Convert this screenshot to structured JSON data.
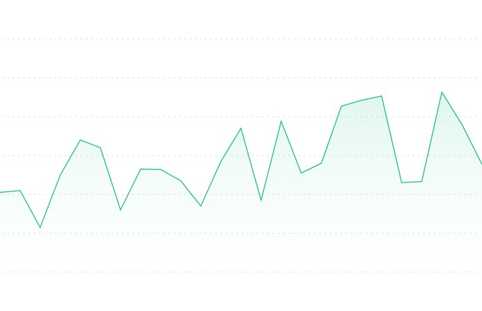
{
  "colors": {
    "background": "#ffffff",
    "grid": "#d6d6d6",
    "line": "#1bbf8a",
    "area_top": "#1bbf8a",
    "area_bottom": "#ffffff"
  },
  "chart_data": {
    "type": "area",
    "x": [
      0,
      1,
      2,
      3,
      4,
      5,
      6,
      7,
      8,
      9,
      10,
      11,
      12,
      13,
      14,
      15,
      16,
      17,
      18,
      19,
      20,
      21,
      22,
      23,
      24
    ],
    "series": [
      {
        "values": [
          30.5,
          31.0,
          21.5,
          35.0,
          44.0,
          42.0,
          26.0,
          36.5,
          36.4,
          33.5,
          27.0,
          38.5,
          47.0,
          28.5,
          48.8,
          35.5,
          38.0,
          52.7,
          54.2,
          55.3,
          33.0,
          33.3,
          56.3,
          48.0,
          37.7
        ]
      }
    ],
    "ylim": [
      0,
      80
    ],
    "gridlines": [
      10,
      20,
      30,
      40,
      50,
      60,
      70
    ],
    "grid": true,
    "legend": "none",
    "title": "",
    "xlabel": "",
    "ylabel": ""
  }
}
